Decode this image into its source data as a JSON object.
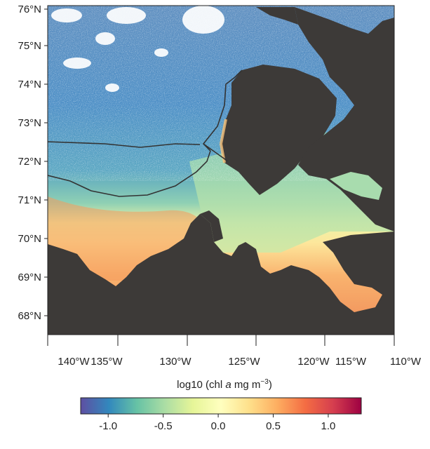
{
  "map": {
    "latitude_labels": [
      "76°N",
      "75°N",
      "74°N",
      "73°N",
      "72°N",
      "71°N",
      "70°N",
      "69°N",
      "68°N"
    ],
    "longitude_labels": [
      "140°W",
      "135°W",
      "130°W",
      "125°W",
      "120°W",
      "115°W",
      "110°W"
    ],
    "colors": {
      "land": "#3d3a38",
      "ice": "#ffffff",
      "boundary": "#333333"
    }
  },
  "colorbar": {
    "title_prefix": "log10 (chl ",
    "title_italic": "a",
    "title_suffix": " mg m",
    "title_superscript": "−3",
    "title_close": ")",
    "tick_labels": [
      "-1.0",
      "-0.5",
      "0.0",
      "0.5",
      "1.0"
    ],
    "range": [
      -1.25,
      1.3
    ],
    "ticks": [
      -1.0,
      -0.5,
      0.0,
      0.5,
      1.0
    ],
    "colormap": [
      "#5e4fa2",
      "#3288bd",
      "#66c2a5",
      "#abdda4",
      "#e6f598",
      "#ffffbf",
      "#fee08b",
      "#fdae61",
      "#f46d43",
      "#d53e4f",
      "#9e0142"
    ]
  }
}
